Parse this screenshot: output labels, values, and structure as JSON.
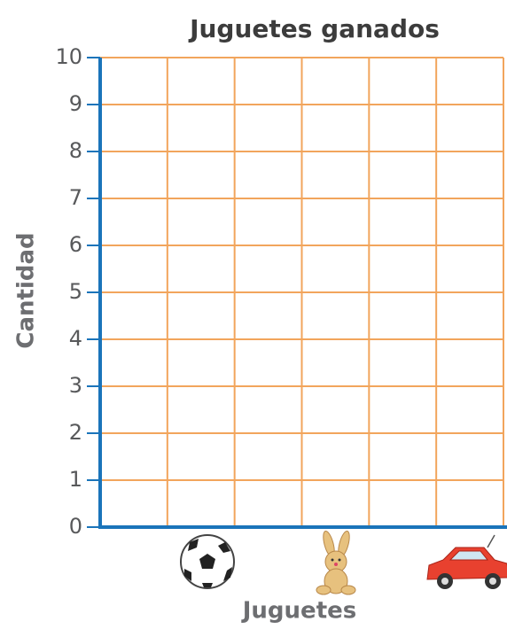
{
  "chart_data": {
    "type": "bar",
    "title": "Juguetes ganados",
    "x_label": "Juguetes",
    "y_label": "Cantidad",
    "ylim": [
      0,
      10
    ],
    "yticks": [
      0,
      1,
      2,
      3,
      4,
      5,
      6,
      7,
      8,
      9,
      10
    ],
    "grid": true,
    "grid_color": "#f2a55c",
    "axis_color": "#1a74ba"
  }
}
